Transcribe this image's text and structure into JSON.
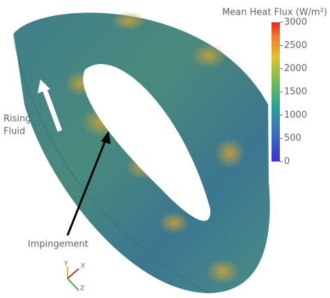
{
  "colorbar": {
    "title": "Mean Heat Flux (W/m²)",
    "lim": [
      0,
      3000
    ],
    "ticks": [
      0,
      500,
      1000,
      1500,
      2000,
      2500,
      3000
    ]
  },
  "annotations": {
    "rising_line1": "Rising",
    "rising_line2": "Fluid",
    "impingement": "Impingement"
  },
  "axes": {
    "y": "Y",
    "x": "X",
    "z": "Z"
  }
}
